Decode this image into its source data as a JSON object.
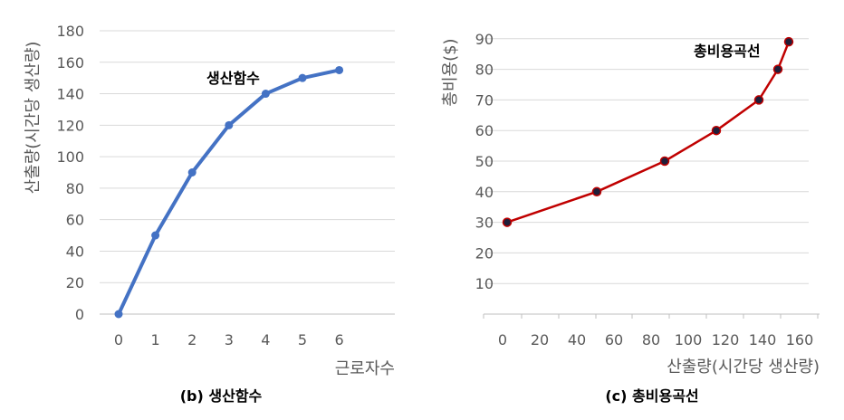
{
  "chart_data": [
    {
      "type": "line",
      "caption": "(b)  생산함수",
      "annotation": "생산함수",
      "xlabel": "근로자수",
      "ylabel": "산출량(시간당 생산량)",
      "categories": [
        "0",
        "1",
        "2",
        "3",
        "4",
        "5",
        "6"
      ],
      "x": [
        0,
        1,
        2,
        3,
        4,
        5,
        6
      ],
      "values": [
        0,
        50,
        90,
        120,
        140,
        150,
        155
      ],
      "ylim": [
        0,
        180
      ],
      "yticks": [
        "0",
        "20",
        "40",
        "60",
        "80",
        "100",
        "120",
        "140",
        "160",
        "180"
      ],
      "grid": true,
      "color": "#4472c4"
    },
    {
      "type": "line",
      "caption": "(c)  총비용곡선",
      "annotation": "총비용곡선",
      "xlabel": "산출량(시간당 생산량)",
      "ylabel": "총비용($)",
      "x": [
        0,
        50,
        90,
        120,
        140,
        150,
        155
      ],
      "values": [
        30,
        40,
        50,
        60,
        70,
        80,
        89
      ],
      "xlim": [
        0,
        160
      ],
      "ylim": [
        0,
        90
      ],
      "xticks": [
        "0",
        "20",
        "40",
        "60",
        "80",
        "100",
        "120",
        "140",
        "160"
      ],
      "yticks": [
        "10",
        "20",
        "30",
        "40",
        "50",
        "60",
        "70",
        "80",
        "90"
      ],
      "grid": true,
      "color": "#c00000",
      "marker_color": "#1f1f3a"
    }
  ]
}
